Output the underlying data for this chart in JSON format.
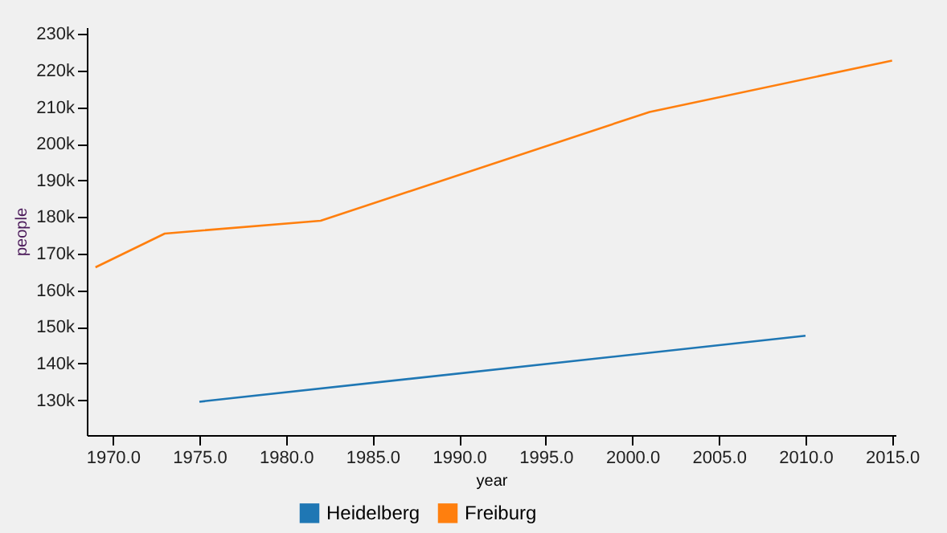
{
  "chart_data": {
    "type": "line",
    "xlabel": "year",
    "ylabel": "people",
    "xlim": [
      1968.5,
      2015.2
    ],
    "ylim": [
      120500,
      231800
    ],
    "xticks": [
      {
        "value": 1970,
        "label": "1970.0"
      },
      {
        "value": 1975,
        "label": "1975.0"
      },
      {
        "value": 1980,
        "label": "1980.0"
      },
      {
        "value": 1985,
        "label": "1985.0"
      },
      {
        "value": 1990,
        "label": "1990.0"
      },
      {
        "value": 1995,
        "label": "1995.0"
      },
      {
        "value": 2000,
        "label": "2000.0"
      },
      {
        "value": 2005,
        "label": "2005.0"
      },
      {
        "value": 2010,
        "label": "2010.0"
      },
      {
        "value": 2015,
        "label": "2015.0"
      }
    ],
    "yticks": [
      {
        "value": 130000,
        "label": "130k"
      },
      {
        "value": 140000,
        "label": "140k"
      },
      {
        "value": 150000,
        "label": "150k"
      },
      {
        "value": 160000,
        "label": "160k"
      },
      {
        "value": 170000,
        "label": "170k"
      },
      {
        "value": 180000,
        "label": "180k"
      },
      {
        "value": 190000,
        "label": "190k"
      },
      {
        "value": 200000,
        "label": "200k"
      },
      {
        "value": 210000,
        "label": "210k"
      },
      {
        "value": 220000,
        "label": "220k"
      },
      {
        "value": 230000,
        "label": "230k"
      }
    ],
    "series": [
      {
        "name": "Heidelberg",
        "color": "#1f77b4",
        "x": [
          1975,
          2010
        ],
        "values": [
          129600,
          147600
        ]
      },
      {
        "name": "Freiburg",
        "color": "#ff7f0e",
        "x": [
          1969,
          1973,
          1982,
          2001,
          2015
        ],
        "values": [
          166300,
          175500,
          179000,
          208700,
          222700
        ]
      }
    ],
    "legend": "bottom",
    "grid": false
  }
}
